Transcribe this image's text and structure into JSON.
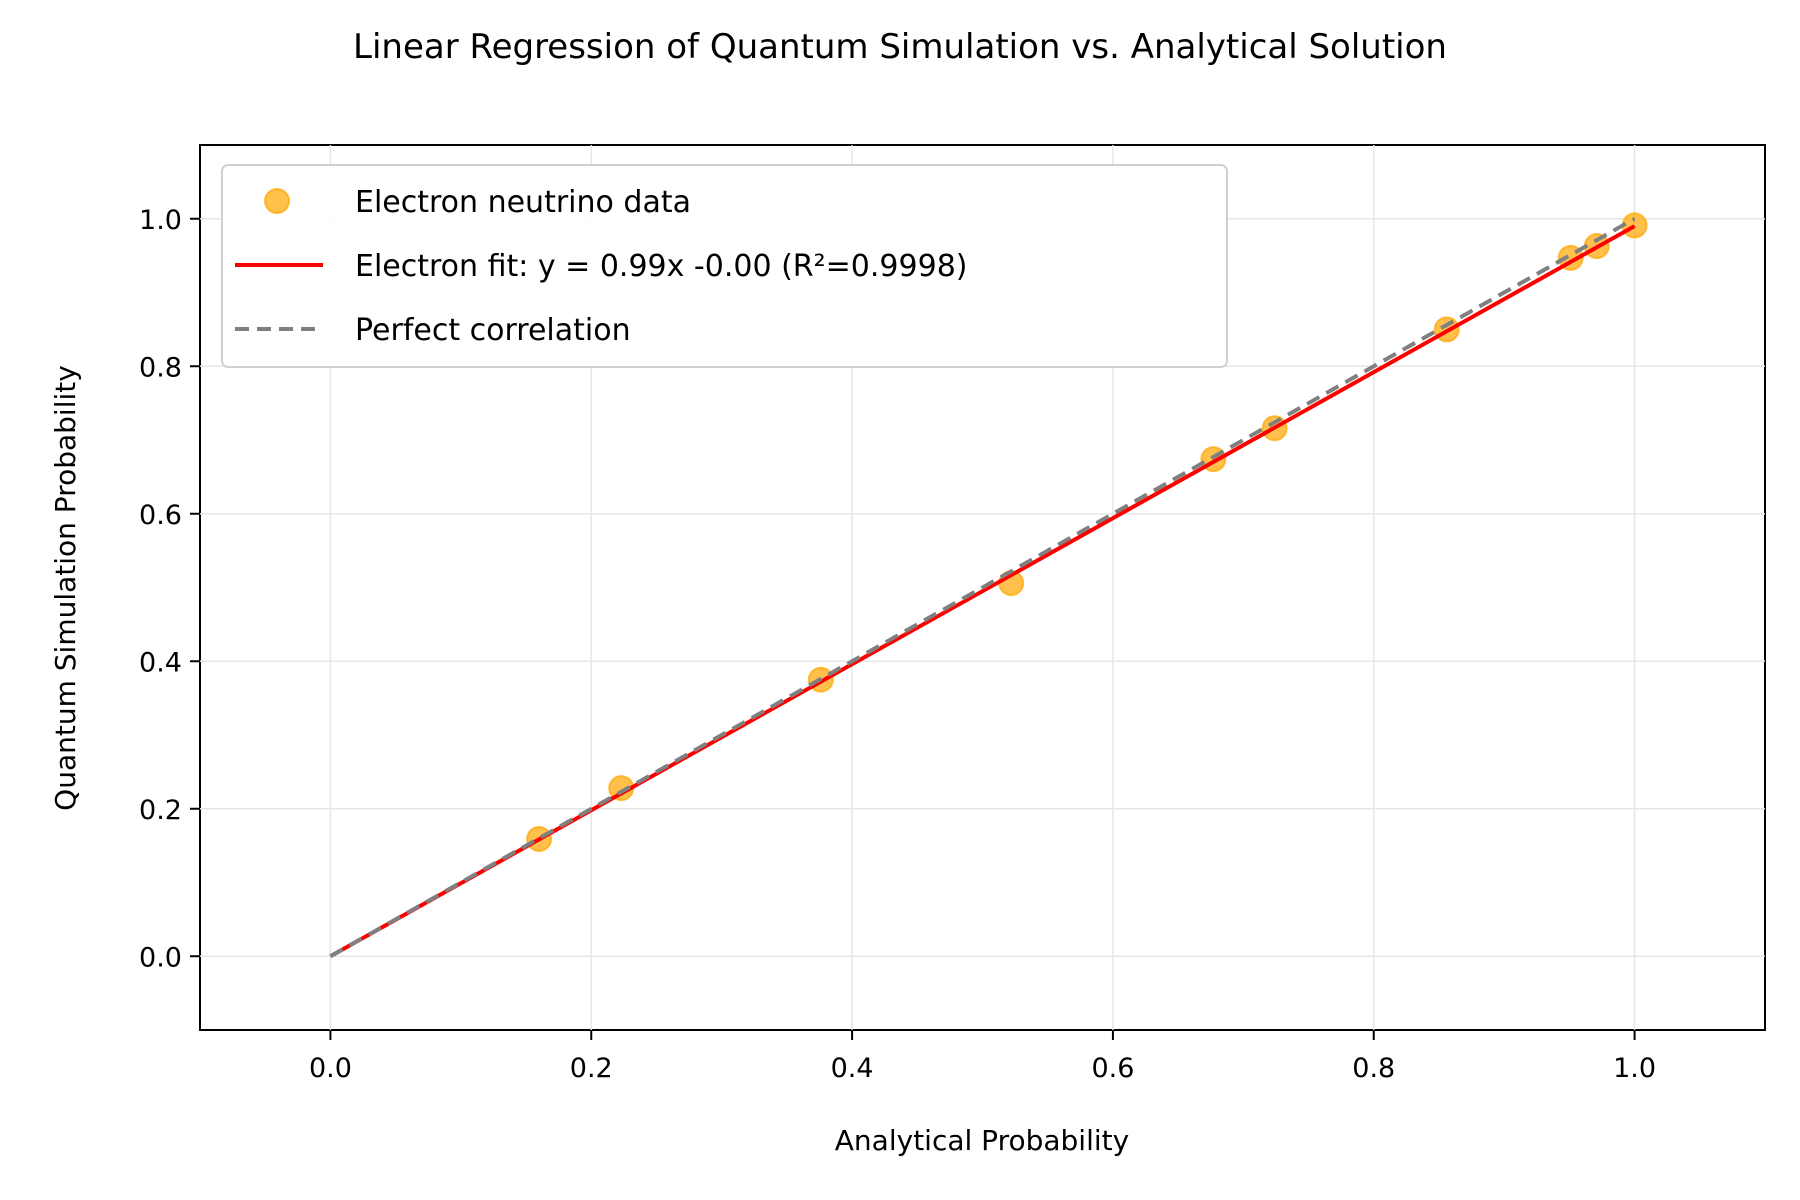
{
  "chart_data": {
    "type": "scatter",
    "title": "Linear Regression of Quantum Simulation vs. Analytical Solution",
    "xlabel": "Analytical Probability",
    "ylabel": "Quantum Simulation Probability",
    "xlim": [
      -0.1,
      1.1
    ],
    "ylim": [
      -0.1,
      1.1
    ],
    "xticks": [
      0.0,
      0.2,
      0.4,
      0.6,
      0.8,
      1.0
    ],
    "yticks": [
      0.0,
      0.2,
      0.4,
      0.6,
      0.8,
      1.0
    ],
    "xtick_labels": [
      "0.0",
      "0.2",
      "0.4",
      "0.6",
      "0.8",
      "1.0"
    ],
    "ytick_labels": [
      "0.0",
      "0.2",
      "0.4",
      "0.6",
      "0.8",
      "1.0"
    ],
    "grid": true,
    "legend_position": "top-left",
    "series": [
      {
        "name": "Electron neutrino data",
        "kind": "points",
        "color": "#ffa500",
        "x": [
          0.16,
          0.223,
          0.376,
          0.522,
          0.677,
          0.724,
          0.856,
          0.951,
          0.971,
          1.0
        ],
        "y": [
          0.159,
          0.228,
          0.375,
          0.506,
          0.674,
          0.716,
          0.85,
          0.947,
          0.963,
          0.991
        ]
      },
      {
        "name": "Electron fit: y = 0.99x -0.00 (R²=0.9998)",
        "kind": "line",
        "color": "#ff0000",
        "x": [
          0.0,
          1.0
        ],
        "y": [
          0.0,
          0.99
        ]
      },
      {
        "name": "Perfect correlation",
        "kind": "dashed-line",
        "color": "#808080",
        "x": [
          0.0,
          1.0
        ],
        "y": [
          0.0,
          1.0
        ]
      }
    ]
  }
}
